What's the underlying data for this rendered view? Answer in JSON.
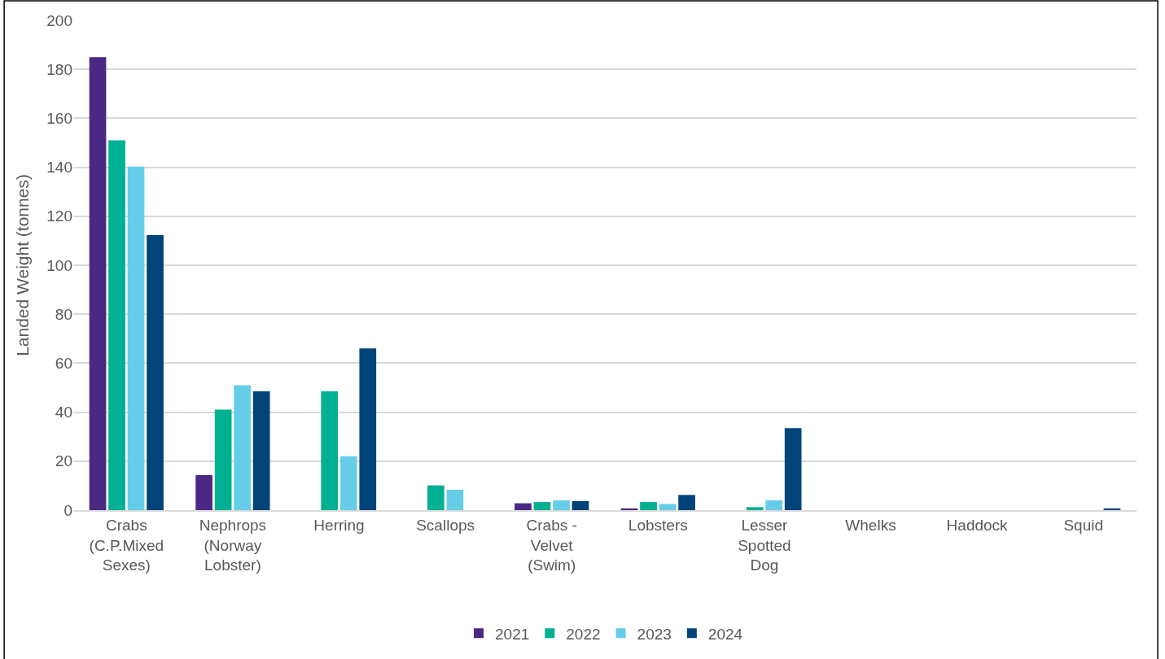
{
  "chart_data": {
    "type": "bar",
    "ylabel": "Landed Weight (tonnes)",
    "categories": [
      "Crabs (C.P.Mixed Sexes)",
      "Nephrops (Norway Lobster)",
      "Herring",
      "Scallops",
      "Crabs - Velvet (Swim)",
      "Lobsters",
      "Lesser Spotted Dog",
      "Whelks",
      "Haddock",
      "Squid"
    ],
    "series": [
      {
        "name": "2021",
        "color": "#4b2884",
        "values": [
          185,
          14.3,
          null,
          null,
          2.8,
          0.7,
          null,
          null,
          null,
          null
        ]
      },
      {
        "name": "2022",
        "color": "#00b092",
        "values": [
          151,
          41,
          48.5,
          10.1,
          3.3,
          3.3,
          1.2,
          null,
          null,
          null
        ]
      },
      {
        "name": "2023",
        "color": "#66cde9",
        "values": [
          140.3,
          51,
          22,
          8.3,
          4,
          2.5,
          4,
          null,
          null,
          null
        ]
      },
      {
        "name": "2024",
        "color": "#004479",
        "values": [
          112.3,
          48.5,
          66,
          null,
          3.7,
          6.2,
          33.5,
          null,
          null,
          0.7
        ]
      }
    ],
    "ylim": [
      0,
      200
    ],
    "yticks": [
      0,
      20,
      40,
      60,
      80,
      100,
      120,
      140,
      160,
      180,
      200
    ],
    "grid": "y",
    "legend": "bottom"
  }
}
